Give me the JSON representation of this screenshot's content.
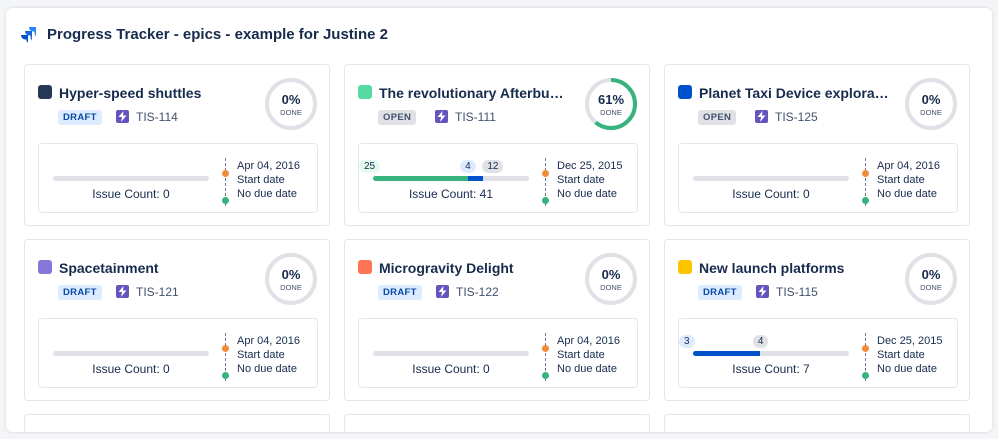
{
  "page": {
    "title": "Progress Tracker - epics - example for Justine 2",
    "logo_icon": "jira-software-icon",
    "brand_color": "#2684ff"
  },
  "cards": [
    {
      "title": "Hyper-speed shuttles",
      "color": "#253858",
      "status": "DRAFT",
      "status_style": "draft",
      "issue_type_icon": "epic-lightning-icon",
      "key": "TIS-114",
      "percent_text": "0%",
      "percent": 0,
      "done_label": "DONE",
      "done": null,
      "in_progress": null,
      "todo": null,
      "total": 0,
      "issue_count": "Issue Count: 0",
      "date": "Apr 04, 2016",
      "start_label": "Start date",
      "due_label": "No due date"
    },
    {
      "title": "The revolutionary Afterburner ...",
      "color": "#57d9a3",
      "status": "OPEN",
      "status_style": "open",
      "issue_type_icon": "epic-lightning-icon",
      "key": "TIS-111",
      "percent_text": "61%",
      "percent": 61,
      "done_label": "DONE",
      "done": 25,
      "in_progress": 4,
      "todo": 12,
      "total": 41,
      "issue_count": "Issue Count: 41",
      "date": "Dec 25, 2015",
      "start_label": "Start date",
      "due_label": "No due date"
    },
    {
      "title": "Planet Taxi Device exploration ...",
      "color": "#0052cc",
      "status": "OPEN",
      "status_style": "open",
      "issue_type_icon": "epic-lightning-icon",
      "key": "TIS-125",
      "percent_text": "0%",
      "percent": 0,
      "done_label": "DONE",
      "done": null,
      "in_progress": null,
      "todo": null,
      "total": 0,
      "issue_count": "Issue Count: 0",
      "date": "Apr 04, 2016",
      "start_label": "Start date",
      "due_label": "No due date"
    },
    {
      "title": "Spacetainment",
      "color": "#8777d9",
      "status": "DRAFT",
      "status_style": "draft",
      "issue_type_icon": "epic-lightning-icon",
      "key": "TIS-121",
      "percent_text": "0%",
      "percent": 0,
      "done_label": "DONE",
      "done": null,
      "in_progress": null,
      "todo": null,
      "total": 0,
      "issue_count": "Issue Count: 0",
      "date": "Apr 04, 2016",
      "start_label": "Start date",
      "due_label": "No due date"
    },
    {
      "title": "Microgravity Delight",
      "color": "#ff7452",
      "status": "DRAFT",
      "status_style": "draft",
      "issue_type_icon": "epic-lightning-icon",
      "key": "TIS-122",
      "percent_text": "0%",
      "percent": 0,
      "done_label": "DONE",
      "done": null,
      "in_progress": null,
      "todo": null,
      "total": 0,
      "issue_count": "Issue Count: 0",
      "date": "Apr 04, 2016",
      "start_label": "Start date",
      "due_label": "No due date"
    },
    {
      "title": "New launch platforms",
      "color": "#ffc400",
      "status": "DRAFT",
      "status_style": "draft",
      "issue_type_icon": "epic-lightning-icon",
      "key": "TIS-115",
      "percent_text": "0%",
      "percent": 0,
      "done_label": "DONE",
      "done": null,
      "in_progress": 3,
      "todo": 4,
      "total": 7,
      "issue_count": "Issue Count: 7",
      "date": "Dec 25, 2015",
      "start_label": "Start date",
      "due_label": "No due date"
    }
  ],
  "colors": {
    "done": "#36b37e",
    "in_progress": "#0052cc",
    "todo": "#dfe1e6",
    "ring_track": "#dfe1e6",
    "ring_fill": "#36b37e"
  }
}
